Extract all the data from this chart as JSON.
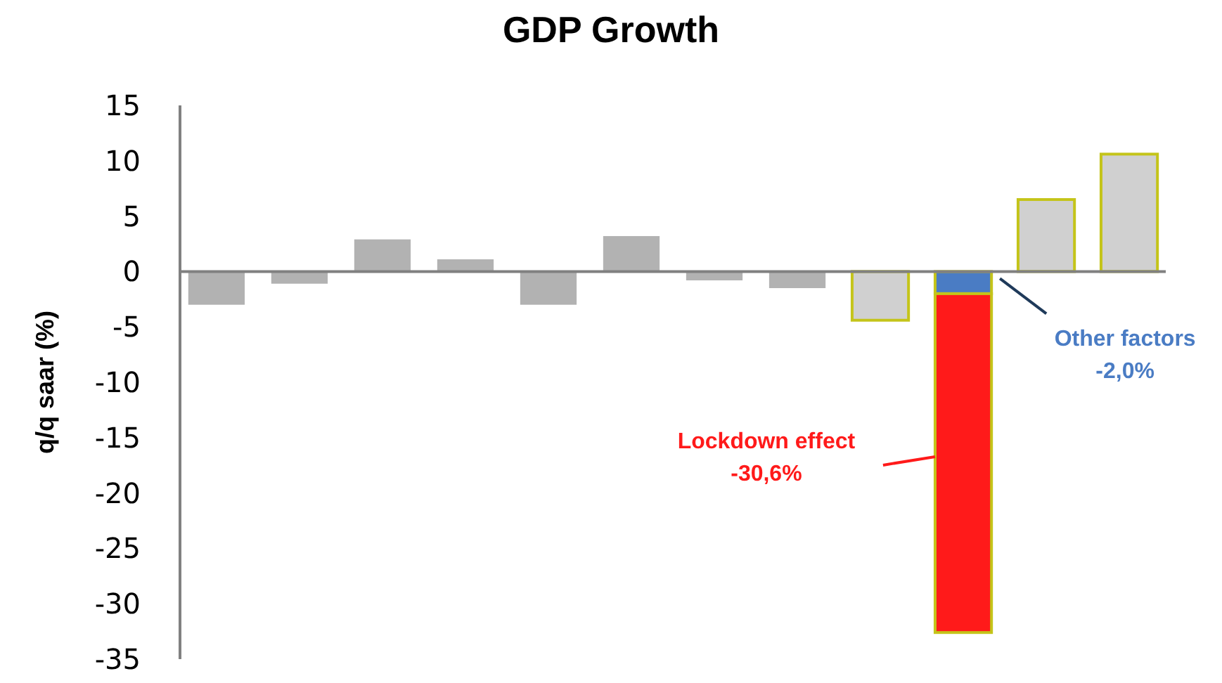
{
  "chart_data": {
    "type": "bar",
    "title": "GDP Growth",
    "ylabel": "q/q saar (%)",
    "categories": [
      null,
      null,
      null,
      null,
      null,
      null,
      null,
      null,
      null,
      null,
      null,
      null
    ],
    "stacked": true,
    "tick_labels": "y",
    "series": [
      {
        "color": "#b2b2b2",
        "colors": [
          "#b2b2b2",
          "#b2b2b2",
          "#b2b2b2",
          "#b2b2b2",
          "#b2b2b2",
          "#b2b2b2",
          "#b2b2b2",
          "#b2b2b2",
          "#d0d0d0",
          null,
          "#d0d0d0",
          "#d0d0d0"
        ],
        "values": [
          -3.0,
          -1.1,
          2.9,
          1.1,
          -3.0,
          3.2,
          -0.8,
          -1.5,
          -4.4,
          null,
          6.5,
          10.6
        ]
      },
      {
        "name": "Other factors",
        "color": "#4a7cc4",
        "values": [
          null,
          null,
          null,
          null,
          null,
          null,
          null,
          null,
          null,
          -2.0,
          null,
          null
        ]
      },
      {
        "name": "Lockdown effect",
        "color": "#ff1a1a",
        "values": [
          null,
          null,
          null,
          null,
          null,
          null,
          null,
          null,
          null,
          -30.6,
          null,
          null
        ]
      }
    ],
    "annotations": [
      "-2,0%",
      "-30,6%"
    ],
    "ylim": [
      -35,
      15
    ],
    "yticks": [
      -35,
      -30,
      -25,
      -20,
      -15,
      -10,
      -5,
      0,
      5,
      10,
      15
    ]
  }
}
